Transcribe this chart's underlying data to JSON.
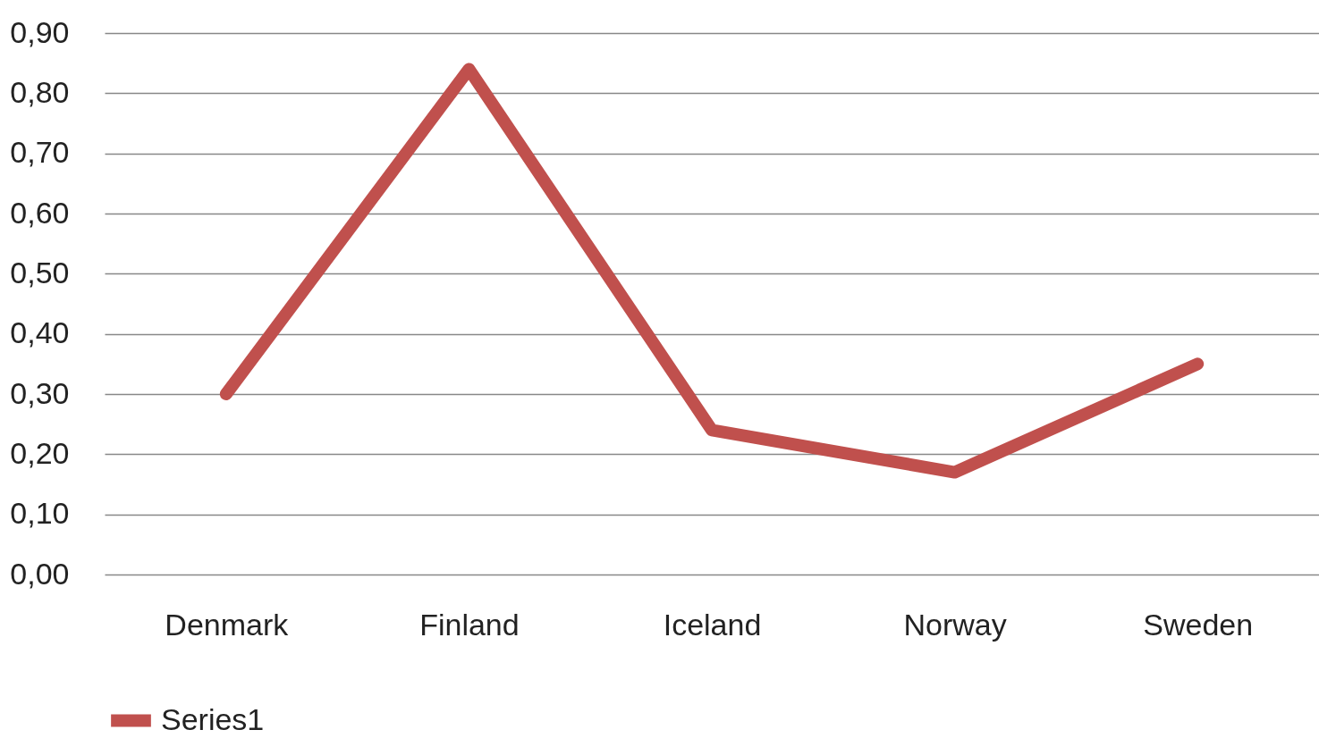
{
  "chart_data": {
    "type": "line",
    "categories": [
      "Denmark",
      "Finland",
      "Iceland",
      "Norway",
      "Sweden"
    ],
    "series": [
      {
        "name": "Series1",
        "color": "#c0504d",
        "values": [
          0.3,
          0.84,
          0.24,
          0.17,
          0.35
        ]
      }
    ],
    "ylim": [
      0,
      0.9
    ],
    "yticks": [
      {
        "value": 0,
        "label": "0,00"
      },
      {
        "value": 0.1,
        "label": "0,10"
      },
      {
        "value": 0.2,
        "label": "0,20"
      },
      {
        "value": 0.3,
        "label": "0,30"
      },
      {
        "value": 0.4,
        "label": "0,40"
      },
      {
        "value": 0.5,
        "label": "0,50"
      },
      {
        "value": 0.6,
        "label": "0,60"
      },
      {
        "value": 0.7,
        "label": "0,70"
      },
      {
        "value": 0.8,
        "label": "0,80"
      },
      {
        "value": 0.9,
        "label": "0,90"
      }
    ],
    "grid": "y",
    "legend": "bottom",
    "marker": "none",
    "line_style": "solid"
  }
}
